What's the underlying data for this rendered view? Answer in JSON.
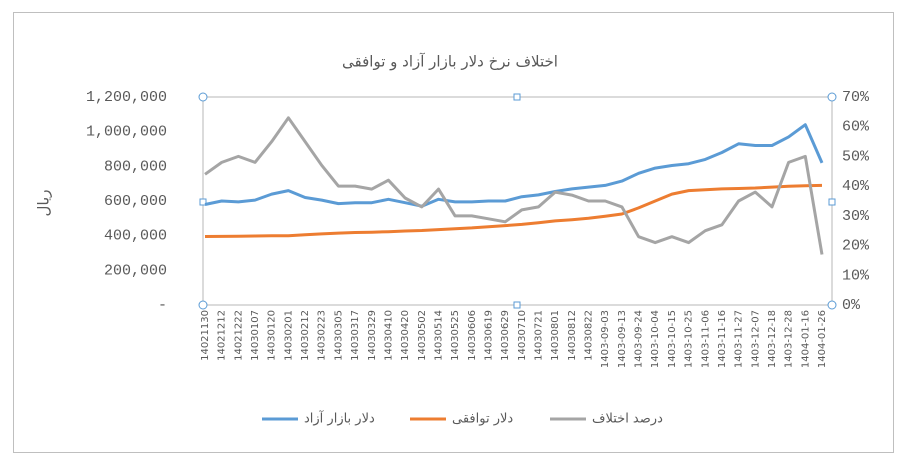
{
  "chart_data": {
    "type": "line",
    "title": "اختلاف نرخ دلار بازار آزاد و توافقی",
    "y_label": "ریال",
    "categories": [
      "14021130",
      "14021212",
      "14021222",
      "14030107",
      "14030120",
      "14030201",
      "14030212",
      "14030223",
      "14030305",
      "14030317",
      "14030329",
      "14030410",
      "14030420",
      "14030502",
      "14030514",
      "14030525",
      "14030606",
      "14030619",
      "14030629",
      "14030710",
      "14030721",
      "14030801",
      "14030812",
      "14030822",
      "1403-09-03",
      "1403-09-13",
      "1403-09-24",
      "1403-10-04",
      "1403-10-15",
      "1403-10-25",
      "1403-11-06",
      "1403-11-16",
      "1403-11-27",
      "1403-12-07",
      "1403-12-18",
      "1403-12-28",
      "1404-01-16",
      "1404-01-26"
    ],
    "series": [
      {
        "name": "دلار بازار آزاد",
        "color": "#5b9bd5",
        "values": [
          580000,
          600000,
          595000,
          605000,
          640000,
          660000,
          620000,
          605000,
          585000,
          590000,
          590000,
          610000,
          590000,
          570000,
          610000,
          595000,
          595000,
          600000,
          600000,
          625000,
          635000,
          655000,
          670000,
          680000,
          690000,
          715000,
          760000,
          790000,
          805000,
          815000,
          840000,
          880000,
          930000,
          920000,
          920000,
          970000,
          1040000,
          820000
        ]
      },
      {
        "name": "دلار توافقی",
        "color": "#ed7d31",
        "values": [
          395000,
          396000,
          397000,
          398000,
          399000,
          400000,
          405000,
          410000,
          415000,
          418000,
          420000,
          423000,
          427000,
          430000,
          435000,
          440000,
          445000,
          452000,
          458000,
          465000,
          475000,
          485000,
          492000,
          500000,
          512000,
          525000,
          560000,
          600000,
          640000,
          660000,
          665000,
          670000,
          672000,
          675000,
          680000,
          685000,
          688000,
          690000
        ]
      },
      {
        "name": "درصد اختلاف",
        "color": "#a5a5a5",
        "axis": "y2",
        "values": [
          44,
          48,
          50,
          48,
          55,
          63,
          55,
          47,
          40,
          40,
          39,
          42,
          36,
          33,
          39,
          30,
          30,
          29,
          28,
          32,
          33,
          38,
          37,
          35,
          35,
          33,
          23,
          21,
          23,
          21,
          25,
          27,
          35,
          38,
          33,
          48,
          50,
          17
        ]
      }
    ],
    "ylim": [
      0,
      1200000
    ],
    "yticks": [
      {
        "value": 0,
        "label": "-"
      },
      {
        "value": 200000,
        "label": "200,000"
      },
      {
        "value": 400000,
        "label": "400,000"
      },
      {
        "value": 600000,
        "label": "600,000"
      },
      {
        "value": 800000,
        "label": "800,000"
      },
      {
        "value": 1000000,
        "label": "1,000,000"
      },
      {
        "value": 1200000,
        "label": "1,200,000"
      }
    ],
    "y2lim": [
      0,
      70
    ],
    "y2ticks": [
      {
        "value": 0,
        "label": "0%"
      },
      {
        "value": 10,
        "label": "10%"
      },
      {
        "value": 20,
        "label": "20%"
      },
      {
        "value": 30,
        "label": "30%"
      },
      {
        "value": 40,
        "label": "40%"
      },
      {
        "value": 50,
        "label": "50%"
      },
      {
        "value": 60,
        "label": "60%"
      },
      {
        "value": 70,
        "label": "70%"
      }
    ],
    "grid": false,
    "legend": "bottom"
  }
}
